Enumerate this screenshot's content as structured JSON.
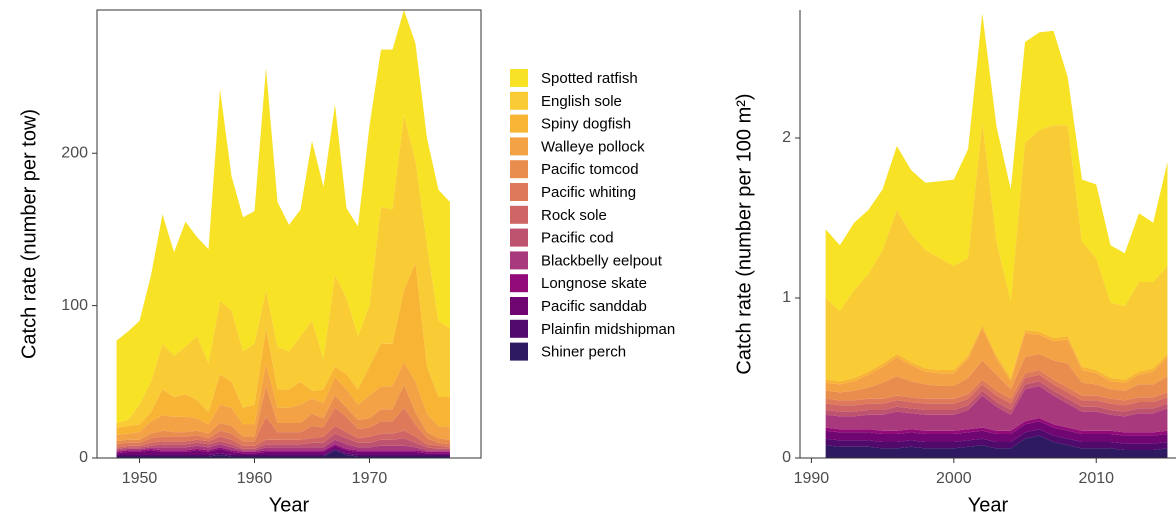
{
  "chart_data": [
    {
      "type": "stacked-area",
      "x_label": "Year",
      "y_label": "Catch rate (number per tow)",
      "x": [
        1948,
        1949,
        1950,
        1951,
        1952,
        1953,
        1954,
        1955,
        1956,
        1957,
        1958,
        1959,
        1960,
        1961,
        1962,
        1963,
        1964,
        1965,
        1966,
        1967,
        1968,
        1969,
        1970,
        1971,
        1972,
        1973,
        1974,
        1975,
        1976,
        1977
      ],
      "xlim": [
        1946.3,
        1979.7
      ],
      "xticks": [
        1950,
        1960,
        1970
      ],
      "ylim": [
        0,
        294
      ],
      "yticks": [
        0,
        100,
        200
      ],
      "frame": "box",
      "series": [
        {
          "name": "Spotted ratfish",
          "color": "#f7e225",
          "values": [
            54,
            58,
            55,
            70,
            85,
            68,
            82,
            65,
            75,
            139,
            88,
            88,
            87,
            146,
            95,
            83,
            83,
            118,
            113,
            112,
            59,
            72,
            118,
            103,
            105,
            69,
            77,
            70,
            86,
            83
          ]
        },
        {
          "name": "English sole",
          "color": "#f9cb35",
          "values": [
            3,
            4,
            13,
            20,
            30,
            27,
            31,
            42,
            32,
            48,
            47,
            37,
            40,
            25,
            28,
            25,
            30,
            46,
            20,
            60,
            50,
            35,
            40,
            90,
            88,
            115,
            67,
            80,
            50,
            45
          ]
        },
        {
          "name": "Spiny dogfish",
          "color": "#f8b434",
          "values": [
            5,
            5,
            5,
            6,
            17,
            13,
            15,
            12,
            8,
            20,
            17,
            11,
            13,
            23,
            12,
            12,
            15,
            5,
            9,
            7,
            10,
            10,
            19,
            28,
            28,
            47,
            78,
            31,
            19,
            20
          ]
        },
        {
          "name": "Walleye pollock",
          "color": "#f3a246",
          "values": [
            4,
            4,
            5,
            8,
            10,
            10,
            10,
            8,
            6,
            12,
            12,
            8,
            8,
            15,
            10,
            10,
            12,
            10,
            10,
            12,
            12,
            10,
            15,
            15,
            15,
            15,
            20,
            12,
            8,
            8
          ]
        },
        {
          "name": "Pacific tomcod",
          "color": "#e98d4f",
          "values": [
            2,
            2,
            2,
            3,
            4,
            3,
            3,
            3,
            3,
            5,
            5,
            3,
            3,
            20,
            6,
            6,
            6,
            8,
            6,
            8,
            6,
            6,
            6,
            8,
            8,
            15,
            8,
            4,
            3,
            3
          ]
        },
        {
          "name": "Pacific whiting",
          "color": "#de7a5a",
          "values": [
            2,
            2,
            2,
            3,
            3,
            3,
            3,
            3,
            2,
            4,
            4,
            3,
            3,
            15,
            5,
            5,
            5,
            8,
            6,
            12,
            10,
            6,
            6,
            8,
            8,
            15,
            8,
            4,
            2,
            2
          ]
        },
        {
          "name": "Rock sole",
          "color": "#cf6564",
          "values": [
            1,
            1,
            1,
            2,
            2,
            2,
            2,
            2,
            2,
            3,
            3,
            2,
            2,
            3,
            3,
            3,
            3,
            3,
            4,
            5,
            4,
            3,
            4,
            4,
            4,
            5,
            4,
            2,
            2,
            1
          ]
        },
        {
          "name": "Pacific cod",
          "color": "#be5370",
          "values": [
            1,
            1,
            1,
            1,
            2,
            2,
            2,
            2,
            2,
            2,
            2,
            1,
            1,
            2,
            2,
            2,
            2,
            3,
            3,
            4,
            4,
            3,
            3,
            4,
            4,
            5,
            3,
            2,
            1,
            1
          ]
        },
        {
          "name": "Blackbelly eelpout",
          "color": "#a8397c",
          "values": [
            1,
            1,
            1,
            1,
            2,
            2,
            2,
            2,
            2,
            2,
            2,
            1,
            1,
            2,
            2,
            2,
            2,
            2,
            2,
            3,
            3,
            2,
            2,
            3,
            3,
            3,
            2,
            1,
            1,
            1
          ]
        },
        {
          "name": "Longnose skate",
          "color": "#920b78",
          "values": [
            1,
            1,
            1,
            1,
            1,
            1,
            1,
            1,
            1,
            1,
            1,
            1,
            1,
            1,
            1,
            1,
            1,
            1,
            1,
            1,
            1,
            1,
            1,
            1,
            1,
            1,
            1,
            1,
            1,
            1
          ]
        },
        {
          "name": "Pacific sanddab",
          "color": "#700672",
          "values": [
            1,
            2,
            2,
            3,
            2,
            2,
            2,
            3,
            2,
            3,
            2,
            1,
            1,
            2,
            2,
            2,
            2,
            2,
            2,
            2,
            2,
            2,
            2,
            2,
            2,
            2,
            2,
            1,
            1,
            1
          ]
        },
        {
          "name": "Plainfin midshipman",
          "color": "#4f0a6b",
          "values": [
            1,
            1,
            1,
            1,
            1,
            1,
            1,
            1,
            1,
            1,
            1,
            1,
            1,
            1,
            1,
            1,
            1,
            1,
            1,
            1,
            1,
            1,
            1,
            1,
            1,
            1,
            1,
            1,
            1,
            1
          ]
        },
        {
          "name": "Shiner perch",
          "color": "#2d1a60",
          "values": [
            1,
            1,
            1,
            1,
            1,
            1,
            1,
            1,
            1,
            2,
            1,
            1,
            1,
            1,
            1,
            1,
            1,
            1,
            1,
            5,
            2,
            1,
            1,
            1,
            1,
            1,
            1,
            1,
            1,
            1
          ]
        }
      ]
    },
    {
      "type": "stacked-area",
      "x_label": "Year",
      "y_label": "Catch rate (number per 100 m²)",
      "x": [
        1991,
        1992,
        1993,
        1994,
        1995,
        1996,
        1997,
        1998,
        1999,
        2000,
        2001,
        2002,
        2003,
        2004,
        2005,
        2006,
        2007,
        2008,
        2009,
        2010,
        2011,
        2012,
        2013,
        2014,
        2015
      ],
      "xlim": [
        1989.2,
        2015.6
      ],
      "xticks": [
        1990,
        2000,
        2010
      ],
      "ylim": [
        0,
        2.8
      ],
      "yticks": [
        0,
        1,
        2
      ],
      "frame": "axes",
      "series": [
        {
          "values": [
            0.43,
            0.41,
            0.42,
            0.4,
            0.38,
            0.4,
            0.4,
            0.42,
            0.48,
            0.54,
            0.68,
            0.68,
            0.72,
            0.7,
            0.63,
            0.61,
            0.59,
            0.3,
            0.39,
            0.46,
            0.36,
            0.33,
            0.43,
            0.37,
            0.65
          ]
        },
        {
          "values": [
            0.51,
            0.44,
            0.55,
            0.61,
            0.71,
            0.9,
            0.8,
            0.74,
            0.7,
            0.65,
            0.61,
            1.27,
            0.71,
            0.48,
            1.17,
            1.26,
            1.33,
            1.32,
            0.78,
            0.7,
            0.47,
            0.46,
            0.56,
            0.54,
            0.55
          ]
        },
        {
          "values": [
            0.02,
            0.02,
            0.02,
            0.02,
            0.02,
            0.02,
            0.02,
            0.02,
            0.02,
            0.02,
            0.02,
            0.02,
            0.02,
            0.02,
            0.02,
            0.02,
            0.02,
            0.02,
            0.02,
            0.02,
            0.02,
            0.02,
            0.02,
            0.02,
            0.02
          ]
        },
        {
          "values": [
            0.05,
            0.05,
            0.06,
            0.08,
            0.1,
            0.12,
            0.1,
            0.08,
            0.08,
            0.08,
            0.12,
            0.2,
            0.1,
            0.05,
            0.15,
            0.12,
            0.12,
            0.15,
            0.08,
            0.07,
            0.05,
            0.05,
            0.06,
            0.08,
            0.12
          ]
        },
        {
          "values": [
            0.05,
            0.05,
            0.06,
            0.07,
            0.1,
            0.12,
            0.1,
            0.09,
            0.08,
            0.08,
            0.1,
            0.12,
            0.1,
            0.06,
            0.1,
            0.1,
            0.12,
            0.15,
            0.08,
            0.07,
            0.06,
            0.06,
            0.08,
            0.08,
            0.1
          ]
        },
        {
          "values": [
            0.03,
            0.03,
            0.03,
            0.03,
            0.03,
            0.03,
            0.03,
            0.03,
            0.03,
            0.03,
            0.03,
            0.03,
            0.03,
            0.03,
            0.03,
            0.03,
            0.03,
            0.03,
            0.03,
            0.03,
            0.03,
            0.03,
            0.03,
            0.03,
            0.03
          ]
        },
        {
          "values": [
            0.04,
            0.04,
            0.04,
            0.04,
            0.04,
            0.04,
            0.04,
            0.04,
            0.04,
            0.04,
            0.04,
            0.04,
            0.04,
            0.04,
            0.04,
            0.04,
            0.04,
            0.04,
            0.04,
            0.04,
            0.04,
            0.04,
            0.04,
            0.04,
            0.04
          ]
        },
        {
          "values": [
            0.03,
            0.03,
            0.03,
            0.03,
            0.03,
            0.03,
            0.03,
            0.03,
            0.03,
            0.03,
            0.03,
            0.03,
            0.03,
            0.03,
            0.03,
            0.03,
            0.03,
            0.03,
            0.03,
            0.03,
            0.03,
            0.03,
            0.03,
            0.03,
            0.03
          ]
        },
        {
          "values": [
            0.08,
            0.08,
            0.08,
            0.09,
            0.1,
            0.12,
            0.1,
            0.1,
            0.1,
            0.1,
            0.12,
            0.2,
            0.15,
            0.1,
            0.2,
            0.2,
            0.18,
            0.15,
            0.12,
            0.12,
            0.1,
            0.1,
            0.12,
            0.12,
            0.14
          ]
        },
        {
          "values": [
            0.02,
            0.02,
            0.02,
            0.02,
            0.02,
            0.02,
            0.02,
            0.02,
            0.02,
            0.02,
            0.02,
            0.02,
            0.02,
            0.02,
            0.02,
            0.02,
            0.02,
            0.02,
            0.02,
            0.02,
            0.02,
            0.02,
            0.02,
            0.02,
            0.02
          ]
        },
        {
          "values": [
            0.05,
            0.05,
            0.05,
            0.05,
            0.05,
            0.05,
            0.05,
            0.05,
            0.05,
            0.05,
            0.05,
            0.05,
            0.05,
            0.05,
            0.05,
            0.05,
            0.05,
            0.05,
            0.05,
            0.05,
            0.05,
            0.05,
            0.05,
            0.05,
            0.05
          ]
        },
        {
          "values": [
            0.04,
            0.04,
            0.04,
            0.04,
            0.04,
            0.04,
            0.04,
            0.04,
            0.04,
            0.04,
            0.04,
            0.04,
            0.04,
            0.04,
            0.04,
            0.04,
            0.04,
            0.04,
            0.04,
            0.04,
            0.04,
            0.04,
            0.04,
            0.04,
            0.04
          ]
        },
        {
          "values": [
            0.08,
            0.07,
            0.07,
            0.07,
            0.06,
            0.06,
            0.07,
            0.06,
            0.06,
            0.06,
            0.07,
            0.08,
            0.06,
            0.06,
            0.12,
            0.14,
            0.1,
            0.08,
            0.06,
            0.06,
            0.06,
            0.05,
            0.05,
            0.05,
            0.06
          ]
        }
      ]
    }
  ]
}
